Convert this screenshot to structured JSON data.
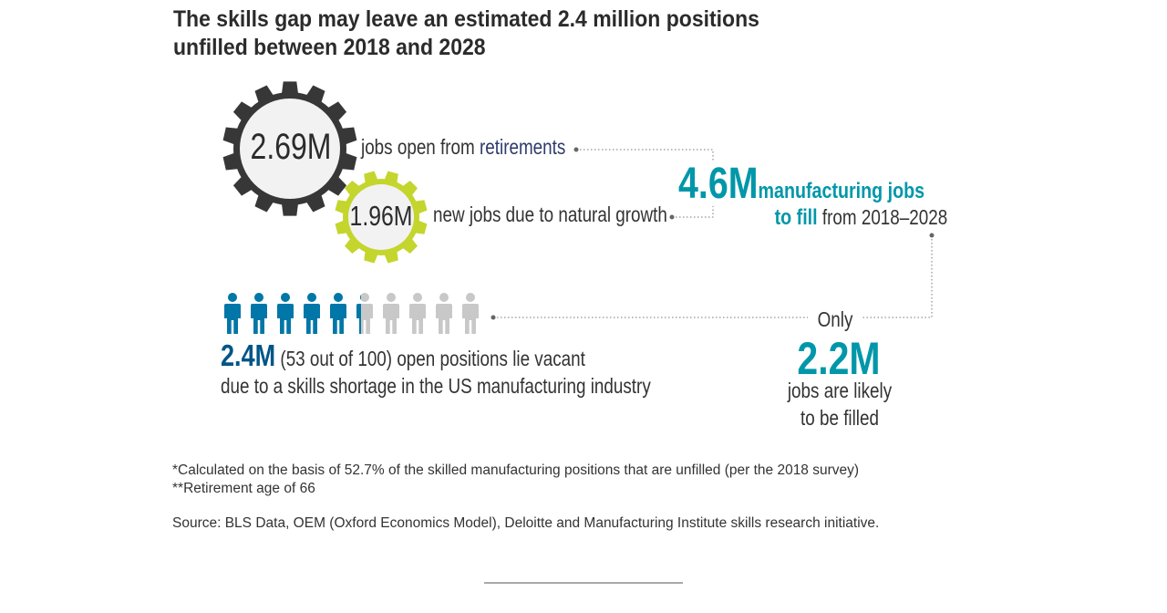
{
  "title": "The skills gap may leave an estimated 2.4 million positions unfilled between 2018 and 2028",
  "gears": [
    {
      "value": "2.69M",
      "label_prefix": "jobs open from ",
      "label_highlight": "retirements",
      "color": "#373737"
    },
    {
      "value": "1.96M",
      "label": "new jobs due to natural growth",
      "color": "#c4d52d"
    }
  ],
  "total": {
    "value": "4.6M",
    "label_line1": "manufacturing jobs",
    "label_line2_bold": "to fill",
    "label_line2_rest": " from 2018–2028"
  },
  "vacant": {
    "value": "2.4M",
    "text_line1": " (53 out of 100) open positions lie vacant",
    "text_line2": "due to a skills shortage in the US manufacturing industry",
    "people_total": 10,
    "people_filled": 5.3,
    "filled_color": "#0077a8",
    "empty_color": "#c8c8c8"
  },
  "filled": {
    "prefix": "Only",
    "value": "2.2M",
    "line1": "jobs are likely",
    "line2": "to be filled"
  },
  "notes": {
    "note1": "*Calculated on the basis of 52.7% of the skilled manufacturing positions that are unfilled (per the 2018 survey)",
    "note2": "**Retirement age of 66",
    "source": "Source: BLS Data, OEM (Oxford Economics Model), Deloitte and Manufacturing Institute skills research initiative."
  }
}
